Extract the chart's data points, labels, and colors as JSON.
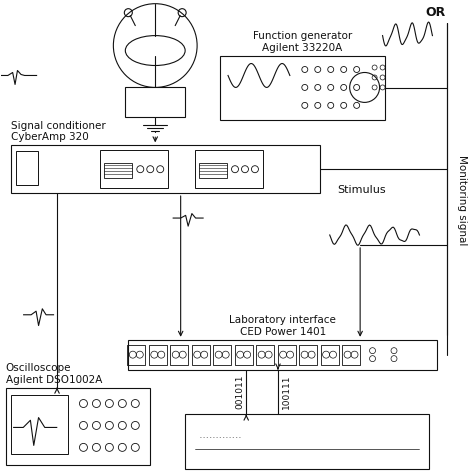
{
  "bg_color": "#ffffff",
  "line_color": "#111111",
  "labels": {
    "function_gen": "Function generator\nAgilent 33220A",
    "signal_cond": "Signal conditioner\nCyberAmp 320",
    "lab_interface": "Laboratory interface\nCED Power 1401",
    "oscilloscope": "Oscilloscope\nAgilent DSO1002A",
    "stimulus": "Stimulus",
    "monitoring": "Monitoring signal",
    "or": "OR",
    "bits1": "001011",
    "bits2": "100111"
  },
  "figsize": [
    4.74,
    4.74
  ],
  "dpi": 100
}
